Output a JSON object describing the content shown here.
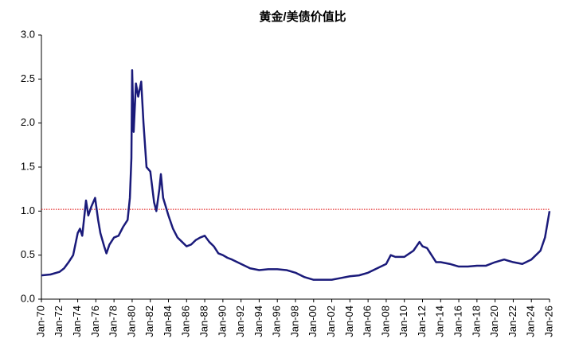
{
  "chart_data": {
    "type": "line",
    "title": "黄金/美债价值比",
    "x": [
      "Jan-70",
      "Jan-71",
      "Jan-72",
      "Jul-72",
      "Jan-73",
      "Jul-73",
      "Jan-74",
      "Apr-74",
      "Jul-74",
      "Dec-74",
      "Mar-75",
      "Jul-75",
      "Dec-75",
      "Apr-76",
      "Jul-76",
      "Dec-76",
      "Mar-77",
      "Jul-77",
      "Jan-78",
      "Jul-78",
      "Jan-79",
      "Jul-79",
      "Oct-79",
      "Dec-79",
      "Jan-80",
      "Mar-80",
      "Jun-80",
      "Sep-80",
      "Jan-81",
      "Apr-81",
      "Aug-81",
      "Jan-82",
      "Jun-82",
      "Sep-82",
      "Jan-83",
      "Mar-83",
      "Jun-83",
      "Jan-84",
      "Jul-84",
      "Jan-85",
      "Jul-85",
      "Jan-86",
      "Jul-86",
      "Jan-87",
      "Jul-87",
      "Jan-88",
      "Jul-88",
      "Jan-89",
      "Jul-89",
      "Jan-90",
      "Jul-90",
      "Jan-91",
      "Jan-92",
      "Jan-93",
      "Jan-94",
      "Jan-95",
      "Jan-96",
      "Jan-97",
      "Jan-98",
      "Jan-99",
      "Jan-00",
      "Jan-01",
      "Jan-02",
      "Jan-03",
      "Jan-04",
      "Jan-05",
      "Jan-06",
      "Jan-07",
      "Jan-08",
      "Jul-08",
      "Jan-09",
      "Jan-10",
      "Jan-11",
      "Sep-11",
      "Jan-12",
      "Jul-12",
      "Jan-13",
      "Jul-13",
      "Jan-14",
      "Jan-15",
      "Jan-16",
      "Jan-17",
      "Jan-18",
      "Jan-19",
      "Jan-20",
      "Jan-21",
      "Jan-22",
      "Jan-23",
      "Jan-24",
      "Jan-25",
      "Jul-25",
      "Jan-26"
    ],
    "values": [
      0.27,
      0.28,
      0.31,
      0.35,
      0.42,
      0.5,
      0.75,
      0.8,
      0.72,
      1.12,
      0.95,
      1.05,
      1.15,
      0.9,
      0.75,
      0.6,
      0.52,
      0.62,
      0.7,
      0.72,
      0.82,
      0.9,
      1.15,
      1.6,
      2.6,
      1.9,
      2.45,
      2.3,
      2.47,
      2.0,
      1.5,
      1.45,
      1.1,
      1.0,
      1.25,
      1.42,
      1.15,
      0.95,
      0.8,
      0.7,
      0.65,
      0.6,
      0.62,
      0.67,
      0.7,
      0.72,
      0.65,
      0.6,
      0.52,
      0.5,
      0.47,
      0.45,
      0.4,
      0.35,
      0.33,
      0.34,
      0.34,
      0.33,
      0.3,
      0.25,
      0.22,
      0.22,
      0.22,
      0.24,
      0.26,
      0.27,
      0.3,
      0.35,
      0.4,
      0.5,
      0.48,
      0.48,
      0.55,
      0.65,
      0.6,
      0.58,
      0.5,
      0.42,
      0.42,
      0.4,
      0.37,
      0.37,
      0.38,
      0.38,
      0.42,
      0.45,
      0.42,
      0.4,
      0.45,
      0.55,
      0.7,
      1.0
    ],
    "color": "#1a1a7a",
    "xlim": [
      "Jan-70",
      "Jan-26"
    ],
    "xticks": [
      "Jan-70",
      "Jan-72",
      "Jan-74",
      "Jan-76",
      "Jan-78",
      "Jan-80",
      "Jan-82",
      "Jan-84",
      "Jan-86",
      "Jan-88",
      "Jan-90",
      "Jan-92",
      "Jan-94",
      "Jan-96",
      "Jan-98",
      "Jan-00",
      "Jan-02",
      "Jan-04",
      "Jan-06",
      "Jan-08",
      "Jan-10",
      "Jan-12",
      "Jan-14",
      "Jan-16",
      "Jan-18",
      "Jan-20",
      "Jan-22",
      "Jan-24",
      "Jan-26"
    ],
    "ylim": [
      0,
      3
    ],
    "yticks": [
      {
        "value": 0,
        "label": "0.0"
      },
      0.5,
      {
        "value": 1,
        "label": "1.0"
      },
      1.5,
      {
        "value": 2,
        "label": "2.0"
      },
      2.5,
      {
        "value": 3,
        "label": "3.0"
      }
    ],
    "reference_line": {
      "value": 1.02,
      "color": "#e00000"
    }
  }
}
